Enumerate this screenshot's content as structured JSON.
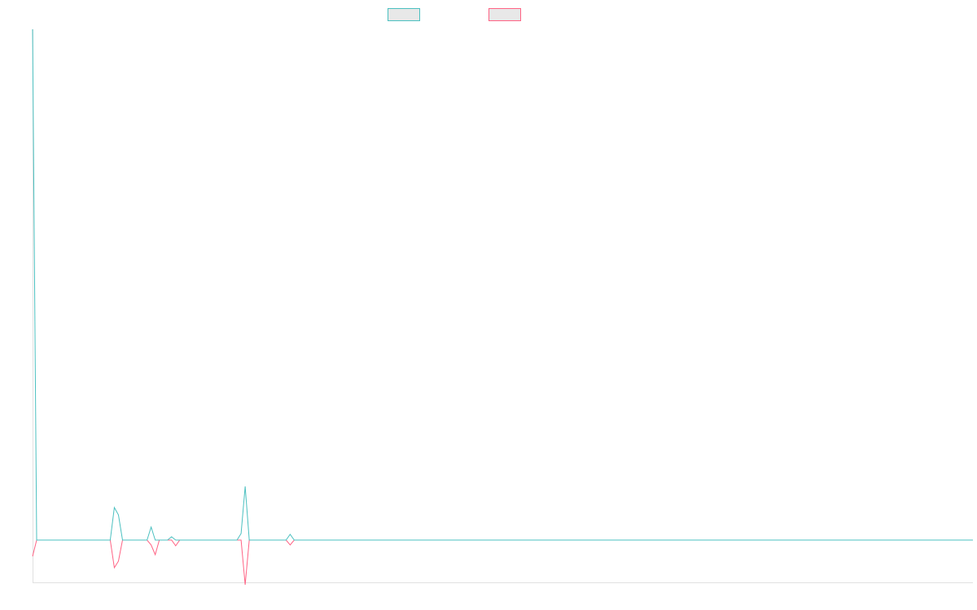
{
  "chart_data": {
    "type": "line",
    "categories": [
      null,
      null,
      null,
      null,
      null,
      null,
      null,
      null,
      null,
      null,
      null,
      null,
      null,
      null,
      null,
      null,
      null,
      null,
      null,
      null,
      null,
      null,
      null,
      null,
      null,
      null,
      null,
      null,
      null,
      null,
      null,
      null,
      null,
      null,
      null,
      null,
      null,
      null,
      null,
      null,
      null,
      null,
      null,
      null,
      null,
      null,
      null,
      null,
      null,
      null,
      null,
      null,
      null,
      null,
      null,
      null,
      null,
      null,
      null,
      null,
      null,
      null,
      null,
      null,
      null,
      null,
      null,
      null,
      null,
      null,
      null,
      null,
      null,
      null,
      null,
      null,
      null,
      null,
      null,
      null,
      null,
      null,
      null,
      null,
      null,
      null,
      null,
      null,
      null,
      null,
      null,
      null,
      null,
      null,
      null,
      null,
      null,
      null,
      null,
      null,
      null,
      null,
      null,
      null,
      null,
      null,
      null,
      null,
      null,
      null,
      null,
      null,
      null,
      null,
      null,
      null,
      null,
      null,
      null,
      null,
      null,
      null,
      null,
      null,
      null,
      null,
      null,
      null,
      null,
      null,
      null,
      null,
      null,
      null,
      null,
      null,
      null,
      null,
      null,
      null,
      null,
      null,
      null,
      null,
      null,
      null,
      null,
      null,
      null,
      null,
      null,
      null,
      null,
      null,
      null,
      null,
      null,
      null,
      null,
      null,
      null,
      null,
      null,
      null,
      null,
      null,
      null,
      null,
      null,
      null,
      null,
      null,
      null,
      null,
      null,
      null,
      null,
      null,
      null,
      null,
      null,
      null,
      null,
      null,
      null,
      null,
      null,
      null,
      null,
      null,
      null,
      null,
      null,
      null,
      null,
      null,
      null,
      null,
      null,
      null,
      null,
      null,
      null,
      null,
      null,
      null,
      null,
      null,
      null,
      null,
      null,
      null,
      null,
      null,
      null,
      null,
      null,
      null,
      null,
      null,
      null,
      null,
      null,
      null,
      null,
      null,
      null,
      null,
      null,
      null,
      null
    ],
    "series": [
      {
        "color": "#4bc0c0",
        "values": [
          628,
          0,
          0,
          0,
          0,
          0,
          0,
          0,
          0,
          0,
          0,
          0,
          0,
          0,
          0,
          0,
          0,
          0,
          0,
          0,
          40,
          31,
          0,
          0,
          0,
          0,
          0,
          0,
          0,
          16,
          0,
          0,
          0,
          0,
          4,
          0,
          0,
          0,
          0,
          0,
          0,
          0,
          0,
          0,
          0,
          0,
          0,
          0,
          0,
          0,
          0,
          8,
          66,
          0,
          0,
          0,
          0,
          0,
          0,
          0,
          0,
          0,
          0,
          7,
          0,
          0,
          0,
          0,
          0,
          0,
          0,
          0,
          0,
          0,
          0,
          0,
          0,
          0,
          0,
          0,
          0,
          0,
          0,
          0,
          0,
          0,
          0,
          0,
          0,
          0,
          0,
          0,
          0,
          0,
          0,
          0,
          0,
          0,
          0,
          0,
          0,
          0,
          0,
          0,
          0,
          0,
          0,
          0,
          0,
          0,
          0,
          0,
          0,
          0,
          0,
          0,
          0,
          0,
          0,
          0,
          0,
          0,
          0,
          0,
          0,
          0,
          0,
          0,
          0,
          0,
          0,
          0,
          0,
          0,
          0,
          0,
          0,
          0,
          0,
          0,
          0,
          0,
          0,
          0,
          0,
          0,
          0,
          0,
          0,
          0,
          0,
          0,
          0,
          0,
          0,
          0,
          0,
          0,
          0,
          0,
          0,
          0,
          0,
          0,
          0,
          0,
          0,
          0,
          0,
          0,
          0,
          0,
          0,
          0,
          0,
          0,
          0,
          0,
          0,
          0,
          0,
          0,
          0,
          0,
          0,
          0,
          0,
          0,
          0,
          0,
          0,
          0,
          0,
          0,
          0,
          0,
          0,
          0,
          0,
          0,
          0,
          0,
          0,
          0,
          0,
          0,
          0,
          0,
          0,
          0,
          0,
          0,
          0,
          0,
          0,
          0,
          0,
          0,
          0,
          0,
          0,
          0,
          0,
          0,
          0,
          0,
          0,
          0,
          0,
          0,
          0
        ]
      },
      {
        "color": "#ff6384",
        "values": [
          -20,
          0,
          0,
          0,
          0,
          0,
          0,
          0,
          0,
          0,
          0,
          0,
          0,
          0,
          0,
          0,
          0,
          0,
          0,
          0,
          -34,
          -26,
          0,
          0,
          0,
          0,
          0,
          0,
          0,
          -6,
          -18,
          0,
          0,
          0,
          0,
          -7,
          0,
          0,
          0,
          0,
          0,
          0,
          0,
          0,
          0,
          0,
          0,
          0,
          0,
          0,
          0,
          0,
          -55,
          0,
          0,
          0,
          0,
          0,
          0,
          0,
          0,
          0,
          0,
          -6,
          0,
          0,
          0,
          0,
          0,
          0,
          0,
          0,
          0,
          0,
          0,
          0,
          0,
          0,
          0,
          0,
          0,
          0,
          0,
          0,
          0,
          0,
          0,
          0,
          0,
          0,
          0,
          0,
          0,
          0,
          0,
          0,
          0,
          0,
          0,
          0,
          0,
          0,
          0,
          0,
          0,
          0,
          0,
          0,
          0,
          0,
          0,
          0,
          0,
          0,
          0,
          0,
          0,
          0,
          0,
          0,
          0,
          0,
          0,
          0,
          0,
          0,
          0,
          0,
          0,
          0,
          0,
          0,
          0,
          0,
          0,
          0,
          0,
          0,
          0,
          0,
          0,
          0,
          0,
          0,
          0,
          0,
          0,
          0,
          0,
          0,
          0,
          0,
          0,
          0,
          0,
          0,
          0,
          0,
          0,
          0,
          0,
          0,
          0,
          0,
          0,
          0,
          0,
          0,
          0,
          0,
          0,
          0,
          0,
          0,
          0,
          0,
          0,
          0,
          0,
          0,
          0,
          0,
          0,
          0,
          0,
          0,
          0,
          0,
          0,
          0,
          0,
          0,
          0,
          0,
          0,
          0,
          0,
          0,
          0,
          0,
          0,
          0,
          0,
          0,
          0,
          0,
          0,
          0,
          0,
          0,
          0,
          0,
          0,
          0,
          0,
          0,
          0,
          0,
          0,
          0,
          0,
          0,
          0,
          0,
          0,
          0,
          0,
          0,
          0,
          0,
          0
        ]
      }
    ],
    "ylim": [
      -52,
      628
    ]
  }
}
